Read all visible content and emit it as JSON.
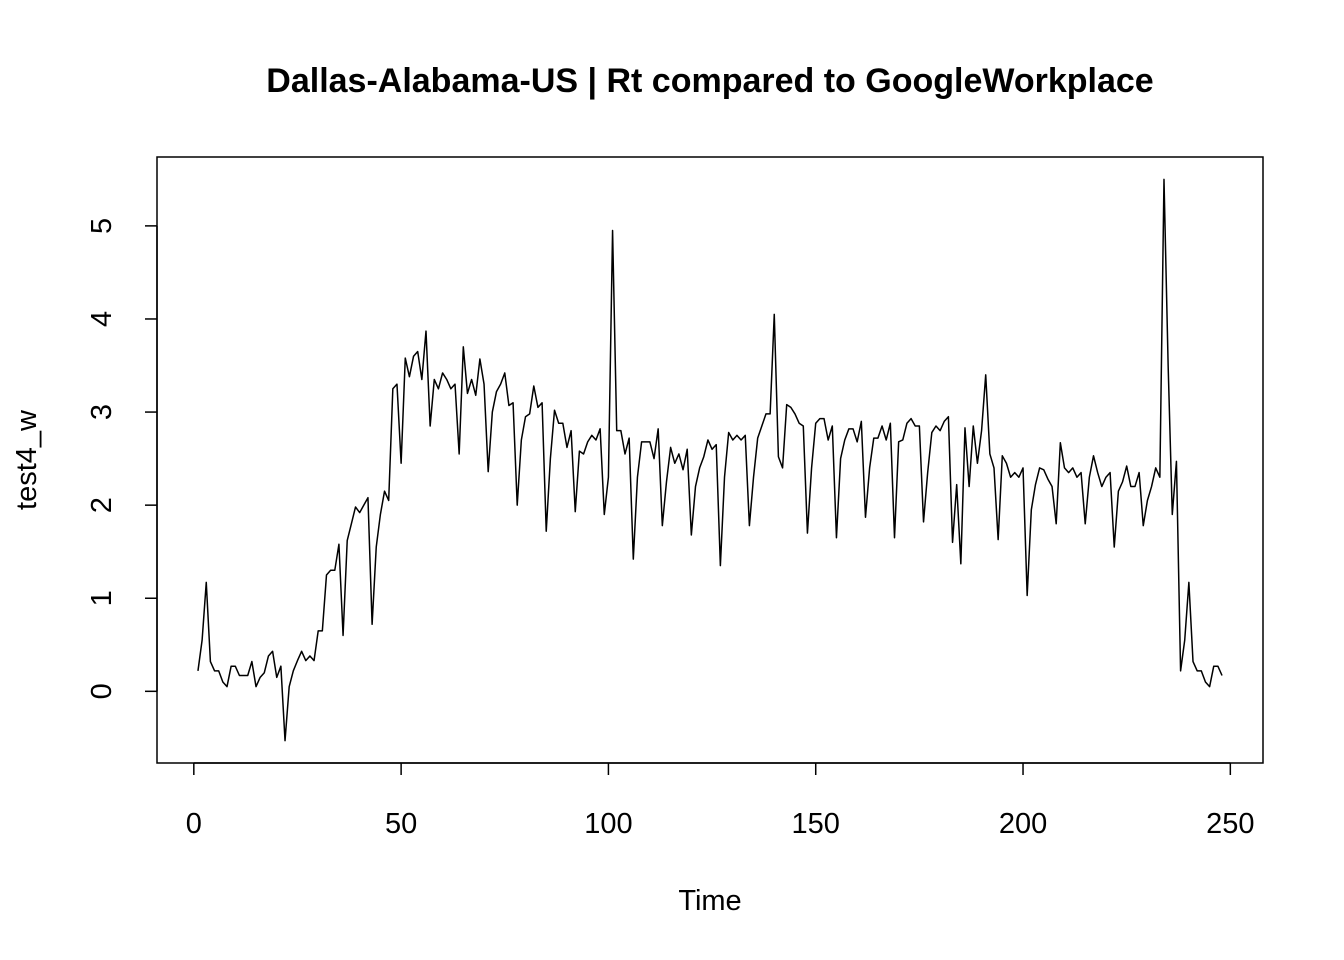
{
  "chart_data": {
    "type": "line",
    "title": "Dallas-Alabama-US | Rt compared to GoogleWorkplace",
    "x_label": "Time",
    "y_label": "test4_w",
    "x": [
      1,
      2,
      3,
      4,
      5,
      6,
      7,
      8,
      9,
      10,
      11,
      12,
      13,
      14,
      15,
      16,
      17,
      18,
      19,
      20,
      21,
      22,
      23,
      24,
      25,
      26,
      27,
      28,
      29,
      30,
      31,
      32,
      33,
      34,
      35,
      36,
      37,
      38,
      39,
      40,
      41,
      42,
      43,
      44,
      45,
      46,
      47,
      48,
      49,
      50,
      51,
      52,
      53,
      54,
      55,
      56,
      57,
      58,
      59,
      60,
      61,
      62,
      63,
      64,
      65,
      66,
      67,
      68,
      69,
      70,
      71,
      72,
      73,
      74,
      75,
      76,
      77,
      78,
      79,
      80,
      81,
      82,
      83,
      84,
      85,
      86,
      87,
      88,
      89,
      90,
      91,
      92,
      93,
      94,
      95,
      96,
      97,
      98,
      99,
      100,
      101,
      102,
      103,
      104,
      105,
      106,
      107,
      108,
      109,
      110,
      111,
      112,
      113,
      114,
      115,
      116,
      117,
      118,
      119,
      120,
      121,
      122,
      123,
      124,
      125,
      126,
      127,
      128,
      129,
      130,
      131,
      132,
      133,
      134,
      135,
      136,
      137,
      138,
      139,
      140,
      141,
      142,
      143,
      144,
      145,
      146,
      147,
      148,
      149,
      150,
      151,
      152,
      153,
      154,
      155,
      156,
      157,
      158,
      159,
      160,
      161,
      162,
      163,
      164,
      165,
      166,
      167,
      168,
      169,
      170,
      171,
      172,
      173,
      174,
      175,
      176,
      177,
      178,
      179,
      180,
      181,
      182,
      183,
      184,
      185,
      186,
      187,
      188,
      189,
      190,
      191,
      192,
      193,
      194,
      195,
      196,
      197,
      198,
      199,
      200,
      201,
      202,
      203,
      204,
      205,
      206,
      207,
      208,
      209,
      210,
      211,
      212,
      213,
      214,
      215,
      216,
      217,
      218,
      219,
      220,
      221,
      222,
      223,
      224,
      225,
      226,
      227,
      228,
      229,
      230,
      231,
      232,
      233,
      234,
      235,
      236,
      237,
      238,
      239,
      240,
      241,
      242,
      243,
      244,
      245,
      246,
      247,
      248
    ],
    "series": [
      {
        "name": "test4_w",
        "color": "#000000",
        "values": [
          0.22,
          0.55,
          1.17,
          0.32,
          0.22,
          0.22,
          0.1,
          0.05,
          0.27,
          0.27,
          0.17,
          0.17,
          0.17,
          0.32,
          0.05,
          0.15,
          0.2,
          0.38,
          0.43,
          0.15,
          0.27,
          -0.53,
          0.05,
          0.22,
          0.33,
          0.43,
          0.33,
          0.38,
          0.33,
          0.65,
          0.65,
          1.25,
          1.3,
          1.3,
          1.58,
          0.6,
          1.62,
          1.8,
          1.98,
          1.92,
          2.0,
          2.08,
          0.72,
          1.55,
          1.9,
          2.15,
          2.05,
          3.25,
          3.3,
          2.45,
          3.58,
          3.38,
          3.6,
          3.65,
          3.35,
          3.87,
          2.85,
          3.35,
          3.25,
          3.42,
          3.35,
          3.25,
          3.3,
          2.55,
          3.7,
          3.2,
          3.35,
          3.18,
          3.57,
          3.3,
          2.36,
          3.0,
          3.22,
          3.3,
          3.42,
          3.07,
          3.1,
          2.0,
          2.7,
          2.95,
          2.98,
          3.28,
          3.05,
          3.1,
          1.72,
          2.5,
          3.02,
          2.88,
          2.88,
          2.62,
          2.8,
          1.93,
          2.58,
          2.55,
          2.68,
          2.75,
          2.7,
          2.82,
          1.9,
          2.3,
          4.95,
          2.8,
          2.8,
          2.55,
          2.72,
          1.42,
          2.3,
          2.68,
          2.68,
          2.68,
          2.5,
          2.82,
          1.78,
          2.25,
          2.62,
          2.45,
          2.55,
          2.38,
          2.6,
          1.68,
          2.2,
          2.4,
          2.52,
          2.7,
          2.6,
          2.65,
          1.35,
          2.3,
          2.78,
          2.7,
          2.75,
          2.7,
          2.75,
          1.78,
          2.3,
          2.72,
          2.85,
          2.98,
          2.98,
          4.05,
          2.52,
          2.4,
          3.08,
          3.05,
          2.98,
          2.88,
          2.85,
          1.7,
          2.4,
          2.88,
          2.93,
          2.93,
          2.7,
          2.85,
          1.65,
          2.5,
          2.7,
          2.82,
          2.82,
          2.68,
          2.9,
          1.87,
          2.4,
          2.72,
          2.72,
          2.85,
          2.7,
          2.88,
          1.65,
          2.68,
          2.7,
          2.88,
          2.93,
          2.85,
          2.85,
          1.82,
          2.35,
          2.78,
          2.85,
          2.8,
          2.9,
          2.95,
          1.6,
          2.22,
          1.37,
          2.83,
          2.2,
          2.85,
          2.45,
          2.8,
          3.4,
          2.55,
          2.4,
          1.63,
          2.53,
          2.45,
          2.3,
          2.35,
          2.3,
          2.4,
          1.03,
          1.95,
          2.22,
          2.4,
          2.38,
          2.28,
          2.2,
          1.8,
          2.67,
          2.4,
          2.35,
          2.4,
          2.3,
          2.35,
          1.8,
          2.3,
          2.53,
          2.35,
          2.2,
          2.3,
          2.35,
          1.55,
          2.15,
          2.25,
          2.42,
          2.2,
          2.2,
          2.35,
          1.78,
          2.05,
          2.2,
          2.4,
          2.3,
          5.5,
          3.5,
          1.9,
          2.47,
          0.22,
          0.55,
          1.17,
          0.32,
          0.22,
          0.22,
          0.1,
          0.05,
          0.27,
          0.27,
          0.17
        ]
      }
    ],
    "xlim": [
      -8.88,
      257.88
    ],
    "xticks": [
      0,
      50,
      100,
      150,
      200,
      250
    ],
    "ylim": [
      -0.77,
      5.74
    ],
    "yticks": [
      0,
      1,
      2,
      3,
      4,
      5
    ]
  }
}
